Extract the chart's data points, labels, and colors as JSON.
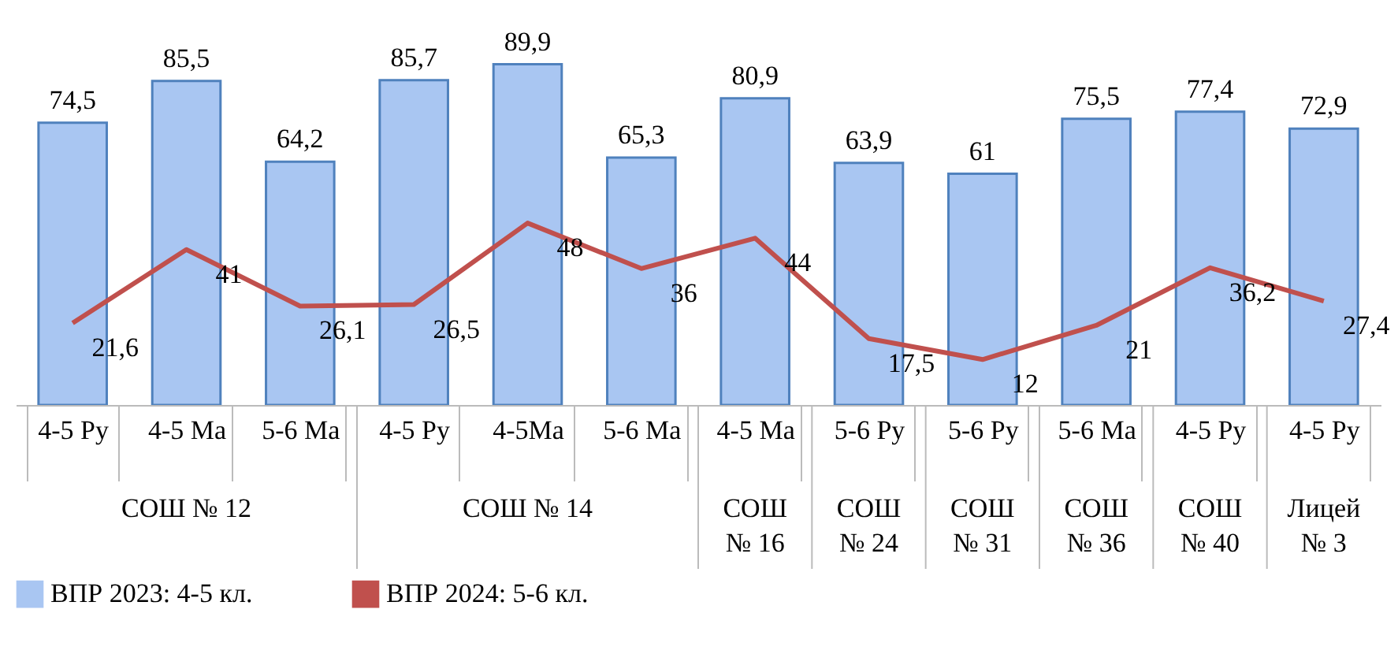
{
  "chart_data": {
    "type": "bar",
    "categories": [
      "4-5 Ру",
      "4-5 Ма",
      "5-6 Ма",
      "4-5 Ру",
      "4-5Ма",
      "5-6 Ма",
      "4-5 Ма",
      "5-6 Ру",
      "5-6 Ру",
      "5-6 Ма",
      "4-5 Ру",
      "4-5 Ру"
    ],
    "series": [
      {
        "name": "ВПР 2023: 4-5 кл.",
        "color": "#a9c6f2",
        "values": [
          74.5,
          85.5,
          64.2,
          85.7,
          89.9,
          65.3,
          80.9,
          63.9,
          61,
          75.5,
          77.4,
          72.9
        ],
        "value_labels": [
          "74,5",
          "85,5",
          "64,2",
          "85,7",
          "89,9",
          "65,3",
          "80,9",
          "63,9",
          "61",
          "75,5",
          "77,4",
          "72,9"
        ]
      },
      {
        "name": "ВПР 2024: 5-6 кл.",
        "type": "line",
        "color": "#c0504d",
        "values": [
          21.6,
          41,
          26.1,
          26.5,
          48,
          36,
          44,
          17.5,
          12,
          21,
          36.2,
          27.4
        ],
        "value_labels": [
          "21,6",
          "41",
          "26,1",
          "26,5",
          "48",
          "36",
          "44",
          "17,5",
          "12",
          "21",
          "36,2",
          "27,4"
        ]
      }
    ],
    "legend": "bottom",
    "annotations": [
      "СОШ № 12",
      "СОШ № 14",
      "СОШ № 16",
      "СОШ № 24",
      "СОШ № 31",
      "СОШ № 36",
      "СОШ № 40",
      "Лицей № 3"
    ]
  }
}
